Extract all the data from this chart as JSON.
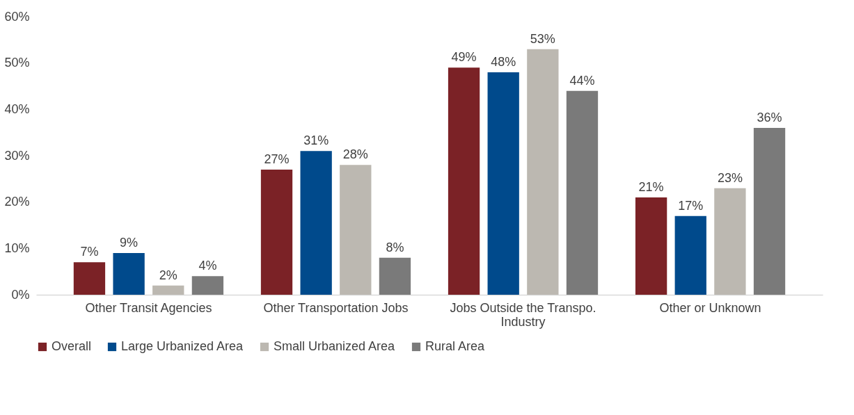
{
  "chart_data": {
    "type": "bar",
    "categories": [
      "Other Transit Agencies",
      "Other Transportation Jobs",
      "Jobs Outside the Transpo. Industry",
      "Other or Unknown"
    ],
    "series": [
      {
        "name": "Overall",
        "color": "#7b2226",
        "values": [
          7,
          27,
          49,
          21
        ],
        "value_labels": [
          "7%",
          "27%",
          "49%",
          "21%"
        ]
      },
      {
        "name": "Large Urbanized Area",
        "color": "#004a8c",
        "values": [
          9,
          31,
          48,
          17
        ],
        "value_labels": [
          "9%",
          "31%",
          "48%",
          "17%"
        ]
      },
      {
        "name": "Small Urbanized Area",
        "color": "#bcb8b1",
        "values": [
          2,
          28,
          53,
          23
        ],
        "value_labels": [
          "2%",
          "28%",
          "53%",
          "23%"
        ]
      },
      {
        "name": "Rural Area",
        "color": "#7a7a7a",
        "values": [
          4,
          8,
          44,
          36
        ],
        "value_labels": [
          "4%",
          "8%",
          "44%",
          "36%"
        ]
      }
    ],
    "ylim": [
      0,
      60
    ],
    "yticks": [
      {
        "value": 0,
        "label": "0%"
      },
      {
        "value": 10,
        "label": "10%"
      },
      {
        "value": 20,
        "label": "20%"
      },
      {
        "value": 30,
        "label": "30%"
      },
      {
        "value": 40,
        "label": "40%"
      },
      {
        "value": 50,
        "label": "50%"
      },
      {
        "value": 60,
        "label": "60%"
      }
    ],
    "grid": false,
    "legend": "bottom"
  }
}
